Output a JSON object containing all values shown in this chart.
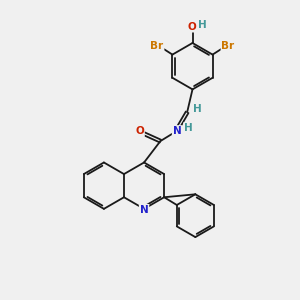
{
  "bg_color": "#f0f0f0",
  "bond_color": "#1a1a1a",
  "bond_width": 1.3,
  "atom_colors": {
    "N": "#2222cc",
    "O": "#cc2200",
    "Br": "#cc7700",
    "H": "#449999"
  },
  "font_size": 7.5,
  "figsize": [
    3.0,
    3.0
  ],
  "dpi": 100
}
